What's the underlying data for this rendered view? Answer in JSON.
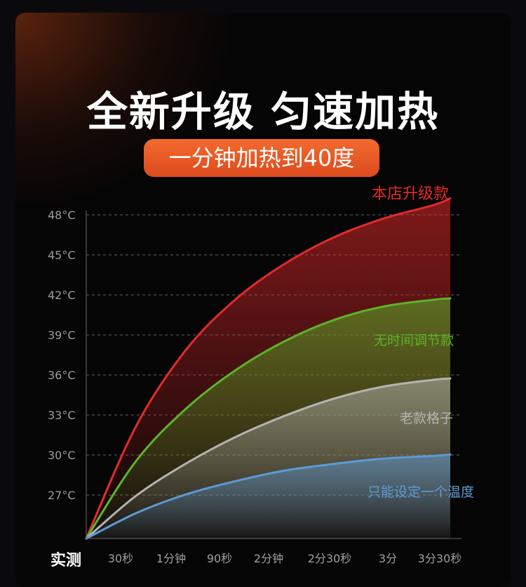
{
  "headline": "全新升级 匀速加热",
  "subtitle": "一分钟加热到40度",
  "colors": {
    "accent_pill": "#ea5a25",
    "red": "#e52a2a",
    "green": "#5bb42a",
    "gray": "#b3b3b3",
    "blue": "#5d9ad6"
  },
  "chart_data": {
    "type": "area",
    "x_axis_title": "实测",
    "categories": [
      "30秒",
      "1分钟",
      "90秒",
      "2分钟",
      "2分30秒",
      "3分",
      "3分30秒"
    ],
    "y_ticks": [
      "27°C",
      "30°C",
      "33°C",
      "36°C",
      "39°C",
      "42°C",
      "45°C",
      "48°C"
    ],
    "ylim": [
      24,
      50
    ],
    "grid": "dashed-horizontal",
    "series": [
      {
        "name": "本店升级款",
        "color": "#e52a2a",
        "x": [
          0,
          30,
          60,
          90,
          120,
          150,
          180,
          210,
          220
        ],
        "y": [
          24,
          32.4,
          38.1,
          41.9,
          44.6,
          46.6,
          48.0,
          49.0,
          49.5
        ]
      },
      {
        "name": "无时间调节款",
        "color": "#5bb42a",
        "x": [
          0,
          30,
          60,
          90,
          120,
          150,
          180,
          210,
          220
        ],
        "y": [
          24,
          29.8,
          33.7,
          36.6,
          38.8,
          40.4,
          41.4,
          41.9,
          42.0
        ]
      },
      {
        "name": "老款格子",
        "color": "#b3b3b3",
        "x": [
          0,
          30,
          60,
          90,
          120,
          150,
          180,
          210,
          220
        ],
        "y": [
          24,
          27.2,
          29.6,
          31.6,
          33.2,
          34.5,
          35.4,
          35.9,
          36.0
        ]
      },
      {
        "name": "只能设定一个温度",
        "color": "#5d9ad6",
        "x": [
          0,
          30,
          60,
          90,
          120,
          150,
          180,
          210,
          220
        ],
        "y": [
          24,
          25.9,
          27.3,
          28.3,
          29.1,
          29.6,
          30.0,
          30.2,
          30.3
        ]
      }
    ]
  }
}
